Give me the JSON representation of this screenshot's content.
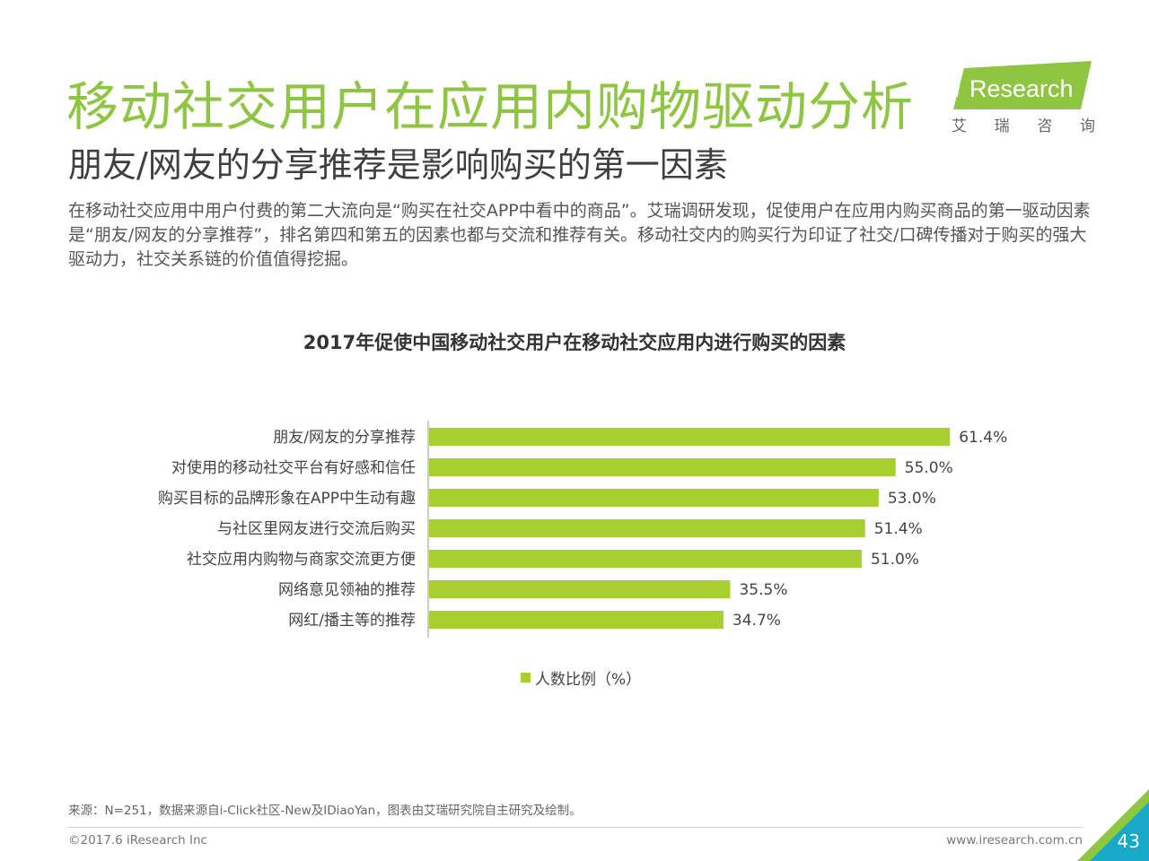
{
  "header": {
    "title": "移动社交用户在应用内购物驱动分析",
    "subtitle": "朋友/网友的分享推荐是影响购买的第一因素",
    "body": "在移动社交应用中用户付费的第二大流向是“购买在社交APP中看中的商品”。艾瑞调研发现，促使用户在应用内购买商品的第一驱动因素是“朋友/网友的分享推荐”，排名第四和第五的因素也都与交流和推荐有关。移动社交内的购买行为印证了社交/口碑传播对于购买的强大驱动力，社交关系链的价值值得挖掘。"
  },
  "logo": {
    "brand_i": "i",
    "brand_rest": "Research",
    "cn_chars": [
      "艾",
      "瑞",
      "咨",
      "询"
    ]
  },
  "chart_data": {
    "type": "bar",
    "orientation": "horizontal",
    "title": "2017年促使中国移动社交用户在移动社交应用内进行购买的因素",
    "categories": [
      "朋友/网友的分享推荐",
      "对使用的移动社交平台有好感和信任",
      "购买目标的品牌形象在APP中生动有趣",
      "与社区里网友进行交流后购买",
      "社交应用内购物与商家交流更方便",
      "网络意见领袖的推荐",
      "网红/播主等的推荐"
    ],
    "series": [
      {
        "name": "人数比例（%）",
        "values": [
          61.4,
          55.0,
          53.0,
          51.4,
          51.0,
          35.5,
          34.7
        ],
        "labels": [
          "61.4%",
          "55.0%",
          "53.0%",
          "51.4%",
          "51.0%",
          "35.5%",
          "34.7%"
        ]
      }
    ],
    "xlim": [
      0,
      100
    ],
    "legend_position": "bottom",
    "grid": false,
    "color": "#a6cf2f"
  },
  "legend": {
    "label": "人数比例（%）"
  },
  "footer": {
    "source": "来源：N=251，数据来源自i-Click社区-New及IDiaoYan，图表由艾瑞研究院自主研究及绘制。",
    "copyright": "©2017.6 iResearch Inc",
    "website": "www.iresearch.com.cn",
    "page_number": "43"
  },
  "colors": {
    "title_green": "#8ec641",
    "bar_green": "#a6cf2f",
    "corner_teal": "#17a9c7",
    "corner_green": "#8ec641"
  }
}
